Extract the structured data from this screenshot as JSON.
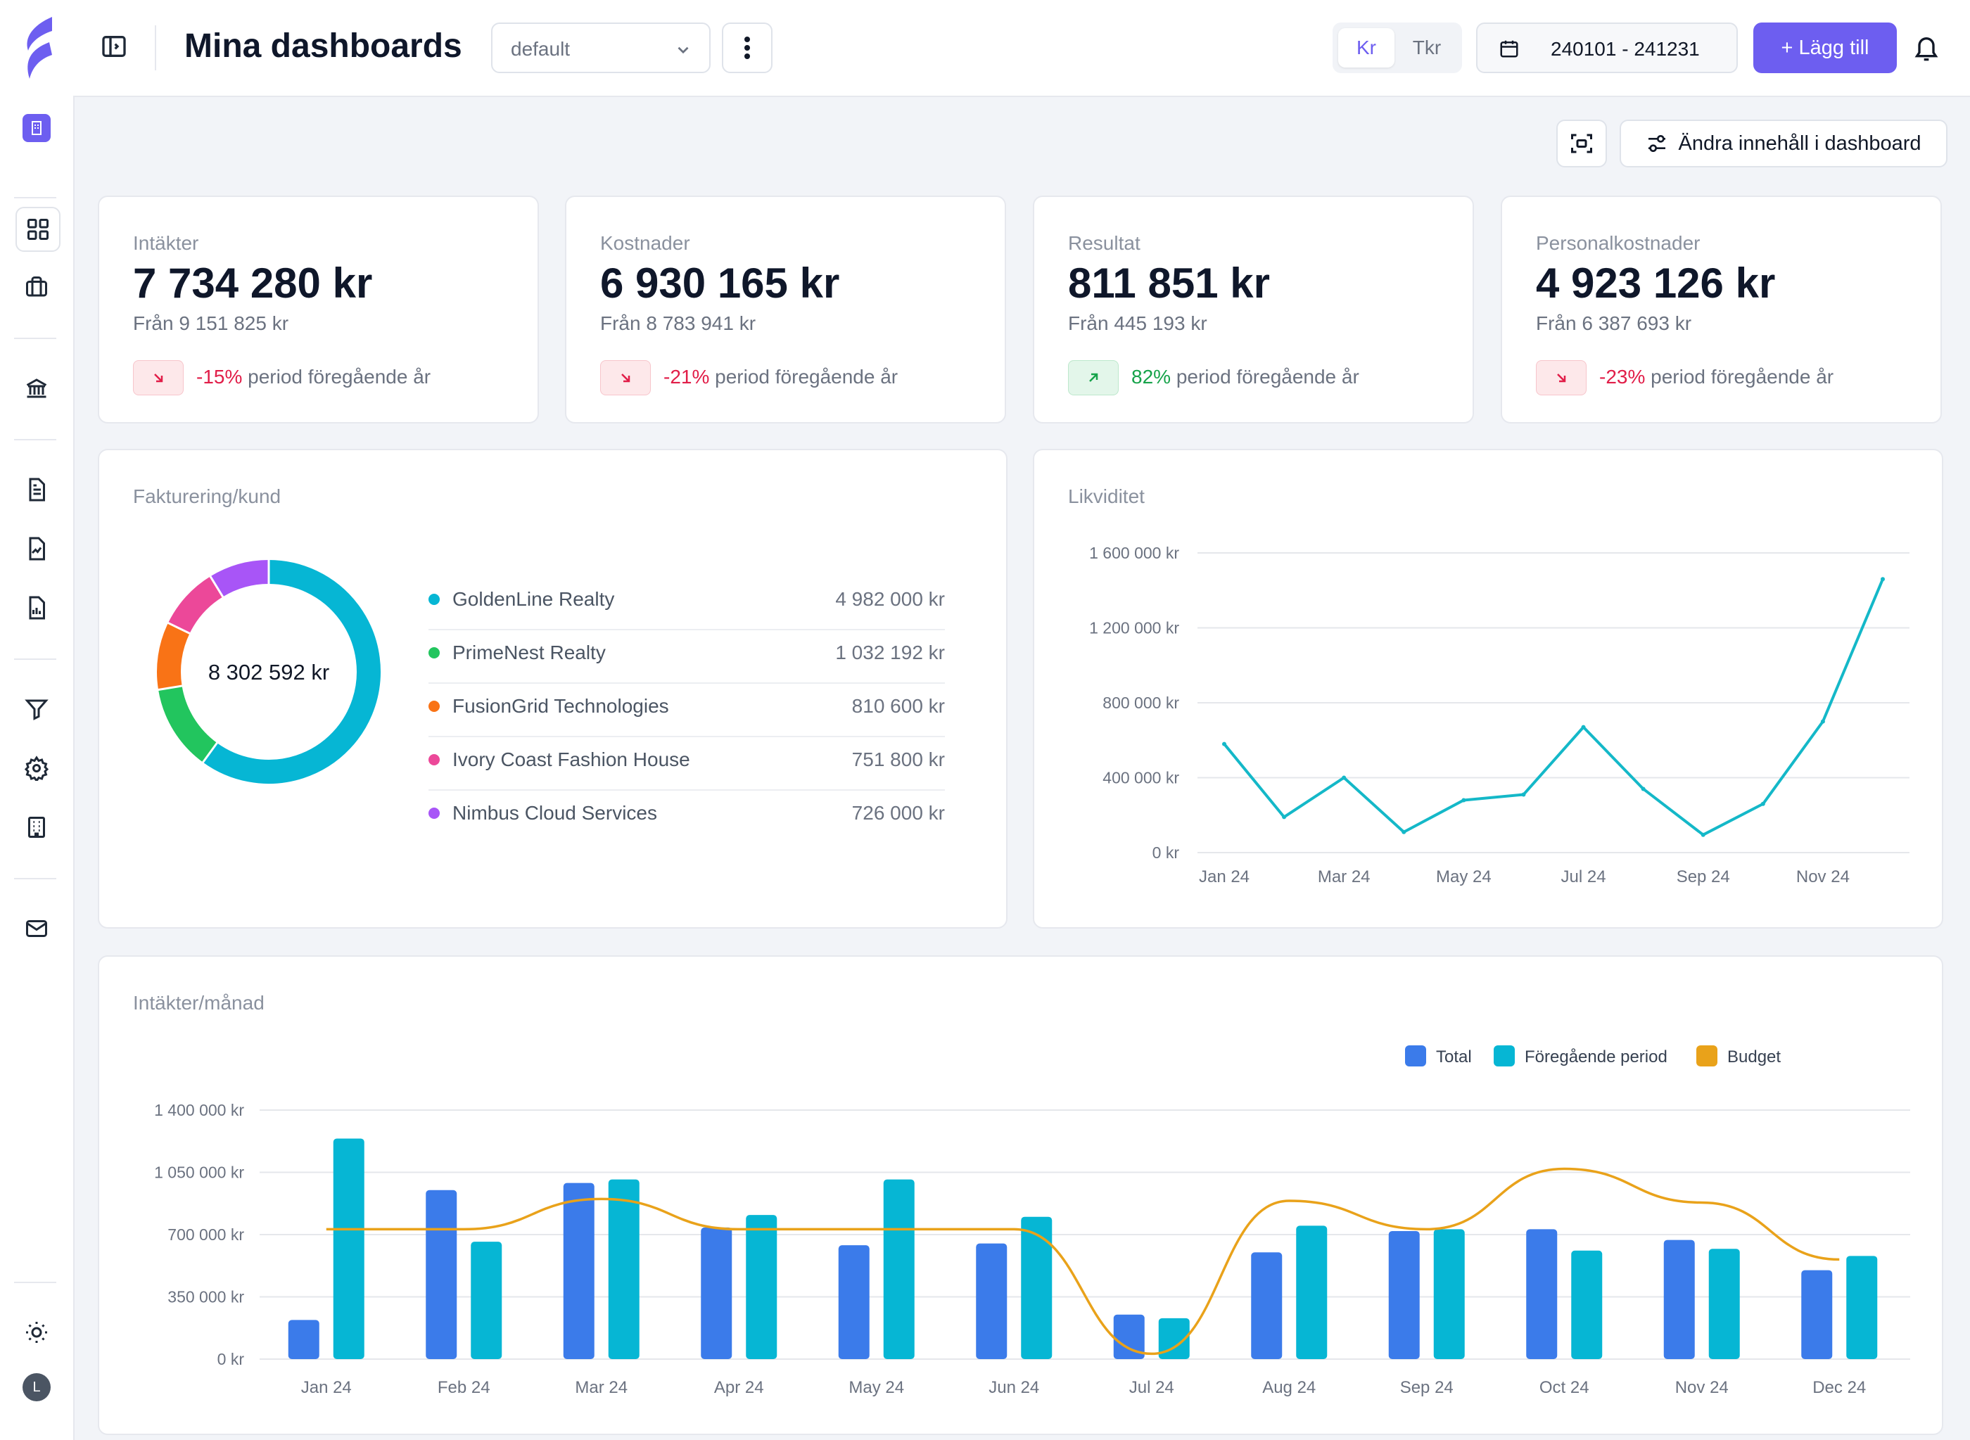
{
  "header": {
    "title": "Mina dashboards",
    "dashboard_select": "default",
    "unit_options": [
      "Kr",
      "Tkr"
    ],
    "date_range": "240101 - 241231",
    "add_button": "+ Lägg till"
  },
  "toolbar": {
    "edit_button": "Ändra innehåll i dashboard"
  },
  "kpis": [
    {
      "title": "Intäkter",
      "value": "7 734 280 kr",
      "from": "Från 9 151 825 kr",
      "pct": "-15%",
      "suffix": " period föregående år",
      "trend": "down"
    },
    {
      "title": "Kostnader",
      "value": "6 930 165 kr",
      "from": "Från 8 783 941 kr",
      "pct": "-21%",
      "suffix": " period föregående år",
      "trend": "down"
    },
    {
      "title": "Resultat",
      "value": "811 851 kr",
      "from": "Från 445 193 kr",
      "pct": "82%",
      "suffix": " period föregående år",
      "trend": "up"
    },
    {
      "title": "Personalkostnader",
      "value": "4 923 126 kr",
      "from": "Från 6 387 693 kr",
      "pct": "-23%",
      "suffix": " period föregående år",
      "trend": "down"
    }
  ],
  "colors": {
    "accent": "#6d5ef0",
    "total": "#3b7bea",
    "previous": "#06b6d4",
    "budget": "#e9a21a",
    "down": "#e11d48",
    "up": "#16a34a"
  },
  "chart_data": [
    {
      "type": "pie",
      "title": "Fakturering/kund",
      "center_label": "8 302 592 kr",
      "categories": [
        "GoldenLine Realty",
        "PrimeNest Realty",
        "FusionGrid Technologies",
        "Ivory Coast Fashion House",
        "Nimbus Cloud Services"
      ],
      "values": [
        4982000,
        1032192,
        810600,
        751800,
        726000
      ],
      "value_labels": [
        "4 982 000 kr",
        "1 032 192 kr",
        "810 600 kr",
        "751 800 kr",
        "726 000 kr"
      ],
      "colors": [
        "#06b6d4",
        "#22c55e",
        "#f97316",
        "#ec4899",
        "#a855f7"
      ]
    },
    {
      "type": "line",
      "title": "Likviditet",
      "x": [
        "Jan 24",
        "Feb 24",
        "Mar 24",
        "Apr 24",
        "May 24",
        "Jun 24",
        "Jul 24",
        "Aug 24",
        "Sep 24",
        "Oct 24",
        "Nov 24",
        "Dec 24"
      ],
      "x_tick_labels": [
        "Jan 24",
        "Mar 24",
        "May 24",
        "Jul 24",
        "Sep 24",
        "Nov 24"
      ],
      "values": [
        580000,
        190000,
        400000,
        110000,
        280000,
        310000,
        670000,
        340000,
        95000,
        260000,
        700000,
        1460000
      ],
      "ylim": [
        0,
        1600000
      ],
      "y_ticks": [
        0,
        400000,
        800000,
        1200000,
        1600000
      ],
      "y_tick_labels": [
        "0 kr",
        "400 000 kr",
        "800 000 kr",
        "1 200 000 kr",
        "1 600 000 kr"
      ],
      "grid": true,
      "color": "#14b8c8"
    },
    {
      "type": "bar",
      "title": "Intäkter/månad",
      "categories": [
        "Jan 24",
        "Feb 24",
        "Mar 24",
        "Apr 24",
        "May 24",
        "Jun 24",
        "Jul 24",
        "Aug 24",
        "Sep 24",
        "Oct 24",
        "Nov 24",
        "Dec 24"
      ],
      "series": [
        {
          "name": "Total",
          "type": "bar",
          "values": [
            220000,
            950000,
            990000,
            740000,
            640000,
            650000,
            250000,
            600000,
            720000,
            730000,
            670000,
            500000
          ]
        },
        {
          "name": "Föregående period",
          "type": "bar",
          "values": [
            1240000,
            660000,
            1010000,
            810000,
            1010000,
            800000,
            230000,
            750000,
            730000,
            610000,
            620000,
            580000
          ]
        },
        {
          "name": "Budget",
          "type": "line",
          "values": [
            730000,
            730000,
            900000,
            730000,
            730000,
            730000,
            30000,
            890000,
            730000,
            1070000,
            880000,
            560000
          ]
        }
      ],
      "ylim": [
        0,
        1400000
      ],
      "y_ticks": [
        0,
        350000,
        700000,
        1050000,
        1400000
      ],
      "y_tick_labels": [
        "0 kr",
        "350 000 kr",
        "700 000 kr",
        "1 050 000 kr",
        "1 400 000 kr"
      ],
      "legend_position": "top-right",
      "grid": true
    }
  ]
}
